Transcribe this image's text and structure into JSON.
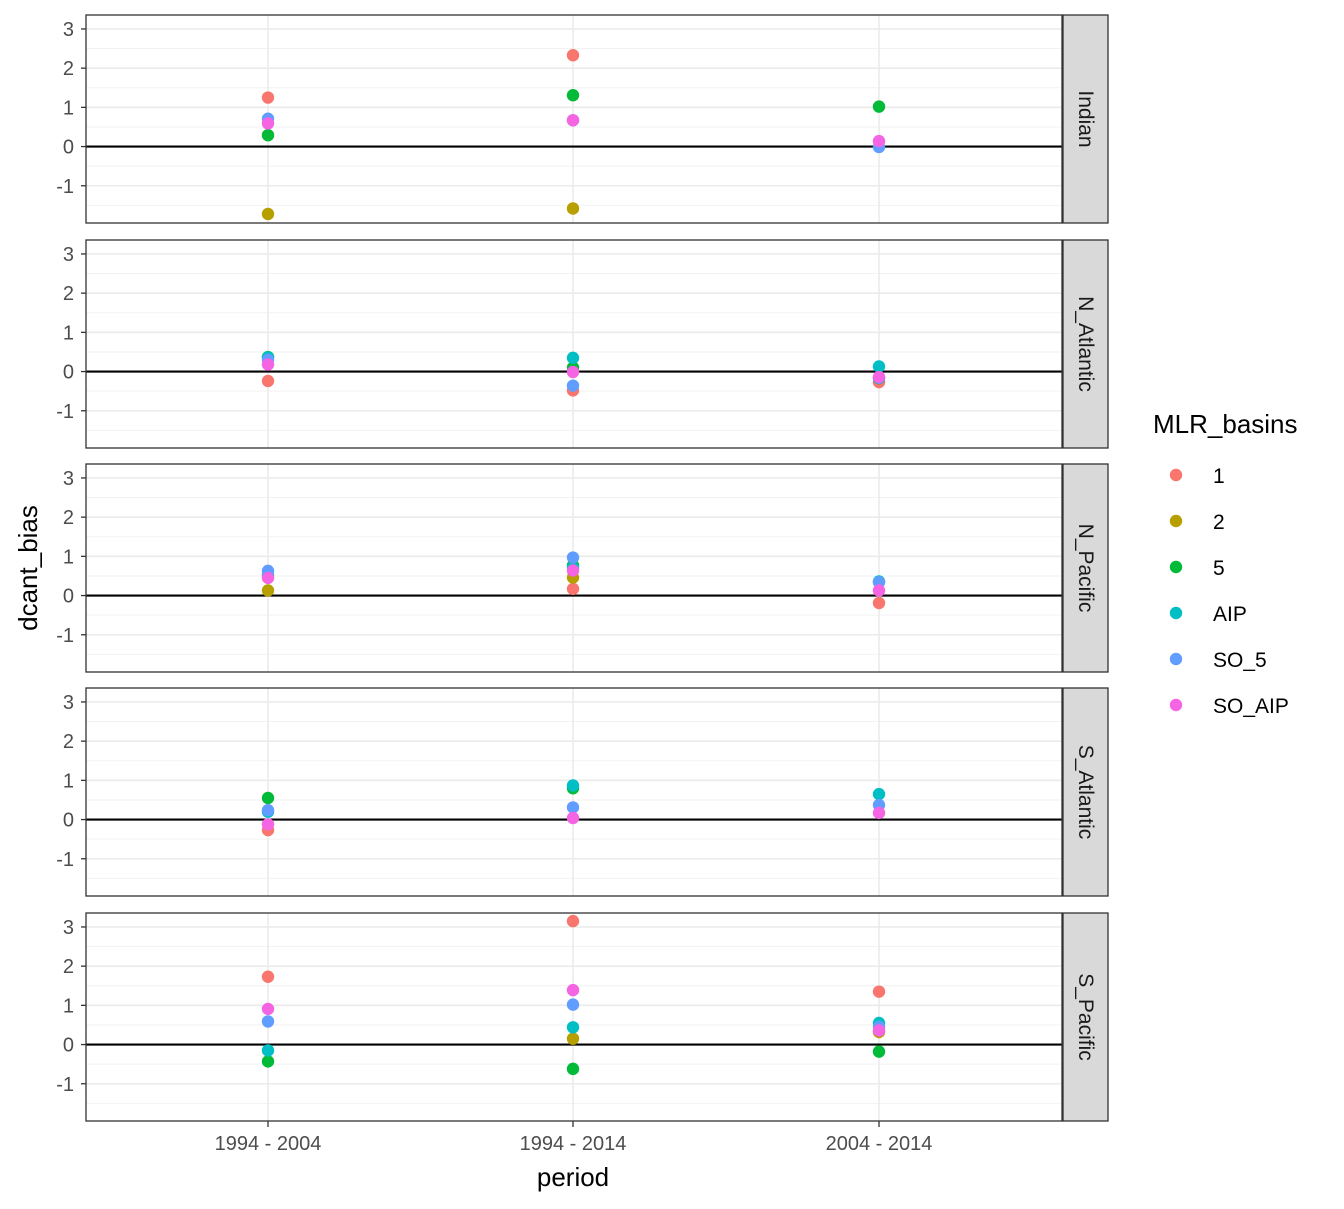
{
  "chart_data": {
    "type": "scatter",
    "xlabel": "period",
    "ylabel": "dcant_bias",
    "categories": [
      "1994 - 2004",
      "1994 - 2014",
      "2004 - 2014"
    ],
    "ylim": [
      -1.95,
      3.35
    ],
    "yticks": [
      -1,
      0,
      1,
      2,
      3
    ],
    "hline": 0,
    "grid": true,
    "legend": {
      "title": "MLR_basins",
      "position": "right",
      "entries": [
        {
          "name": "1",
          "color": "#F8766D"
        },
        {
          "name": "2",
          "color": "#B79F00"
        },
        {
          "name": "5",
          "color": "#00BA38"
        },
        {
          "name": "AIP",
          "color": "#00BFC4"
        },
        {
          "name": "SO_5",
          "color": "#619CFF"
        },
        {
          "name": "SO_AIP",
          "color": "#F564E3"
        }
      ]
    },
    "facets": [
      {
        "label": "Indian",
        "series": [
          {
            "name": "1",
            "values": [
              1.25,
              2.33,
              null
            ]
          },
          {
            "name": "2",
            "values": [
              -1.72,
              -1.58,
              null
            ]
          },
          {
            "name": "5",
            "values": [
              0.29,
              1.31,
              1.02
            ]
          },
          {
            "name": "AIP",
            "values": [
              null,
              null,
              null
            ]
          },
          {
            "name": "SO_5",
            "values": [
              0.71,
              0.67,
              -0.01
            ]
          },
          {
            "name": "SO_AIP",
            "values": [
              0.59,
              0.67,
              0.14
            ]
          }
        ]
      },
      {
        "label": "N_Atlantic",
        "series": [
          {
            "name": "1",
            "values": [
              -0.24,
              -0.48,
              -0.27
            ]
          },
          {
            "name": "2",
            "values": [
              null,
              null,
              null
            ]
          },
          {
            "name": "5",
            "values": [
              0.37,
              0.1,
              -0.17
            ]
          },
          {
            "name": "AIP",
            "values": [
              0.36,
              0.35,
              0.13
            ]
          },
          {
            "name": "SO_5",
            "values": [
              0.3,
              -0.36,
              -0.16
            ]
          },
          {
            "name": "SO_AIP",
            "values": [
              0.18,
              -0.01,
              -0.14
            ]
          }
        ]
      },
      {
        "label": "N_Pacific",
        "series": [
          {
            "name": "1",
            "values": [
              null,
              0.17,
              -0.19
            ]
          },
          {
            "name": "2",
            "values": [
              0.13,
              0.46,
              null
            ]
          },
          {
            "name": "5",
            "values": [
              null,
              0.77,
              null
            ]
          },
          {
            "name": "AIP",
            "values": [
              0.52,
              0.71,
              0.36
            ]
          },
          {
            "name": "SO_5",
            "values": [
              0.63,
              0.97,
              0.34
            ]
          },
          {
            "name": "SO_AIP",
            "values": [
              0.45,
              0.64,
              0.13
            ]
          }
        ]
      },
      {
        "label": "S_Atlantic",
        "series": [
          {
            "name": "1",
            "values": [
              -0.27,
              null,
              null
            ]
          },
          {
            "name": "2",
            "values": [
              null,
              null,
              null
            ]
          },
          {
            "name": "5",
            "values": [
              0.55,
              0.8,
              null
            ]
          },
          {
            "name": "AIP",
            "values": [
              0.2,
              0.87,
              0.65
            ]
          },
          {
            "name": "SO_5",
            "values": [
              0.24,
              0.31,
              0.37
            ]
          },
          {
            "name": "SO_AIP",
            "values": [
              -0.12,
              0.04,
              0.17
            ]
          }
        ]
      },
      {
        "label": "S_Pacific",
        "series": [
          {
            "name": "1",
            "values": [
              1.73,
              3.15,
              1.35
            ]
          },
          {
            "name": "2",
            "values": [
              null,
              0.15,
              0.32
            ]
          },
          {
            "name": "5",
            "values": [
              -0.43,
              -0.62,
              -0.18
            ]
          },
          {
            "name": "AIP",
            "values": [
              -0.15,
              0.44,
              0.55
            ]
          },
          {
            "name": "SO_5",
            "values": [
              0.59,
              1.02,
              0.45
            ]
          },
          {
            "name": "SO_AIP",
            "values": [
              0.91,
              1.39,
              0.36
            ]
          }
        ]
      }
    ]
  }
}
